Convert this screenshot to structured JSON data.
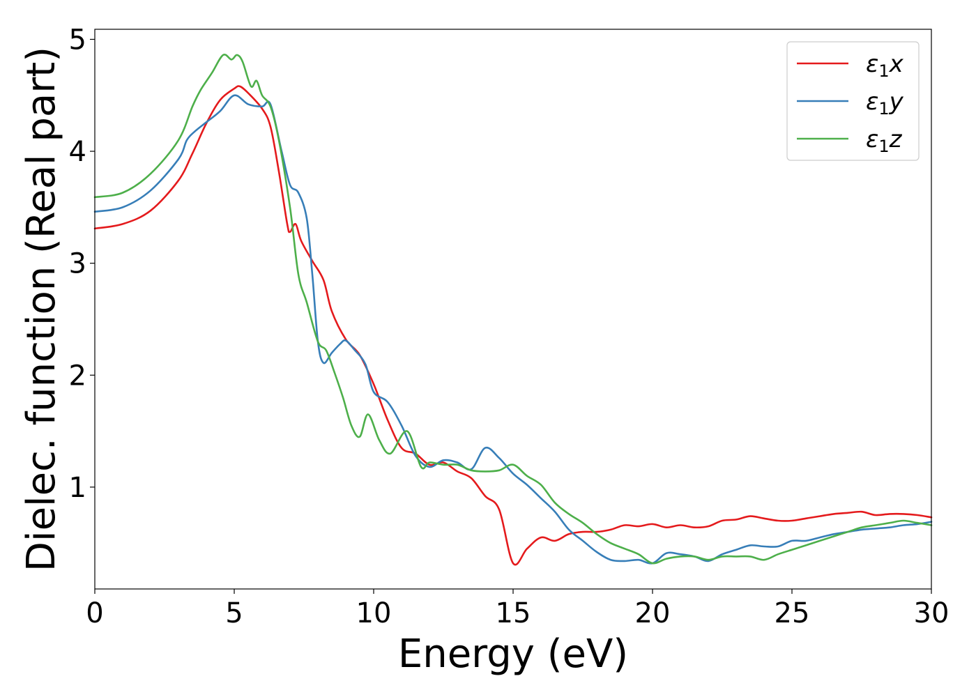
{
  "chart_data": {
    "type": "line",
    "xlabel": "Energy (eV)",
    "ylabel": "Dielec. function (Real part)",
    "xlim": [
      0,
      30
    ],
    "ylim": [
      0.09,
      5.09
    ],
    "xticks": [
      0,
      5,
      10,
      15,
      20,
      25,
      30
    ],
    "yticks": [
      1,
      2,
      3,
      4,
      5
    ],
    "grid": false,
    "legend_position": "top-right",
    "series": [
      {
        "name": "ε1x",
        "legend": {
          "main": "ε",
          "sub": "1",
          "suffix": "x"
        },
        "color": "#e41a1c",
        "x": [
          0,
          1,
          2,
          3,
          3.5,
          4,
          4.5,
          5,
          5.2,
          5.5,
          6,
          6.3,
          6.6,
          6.9,
          7.0,
          7.2,
          7.4,
          7.8,
          8.2,
          8.5,
          9,
          9.5,
          10,
          10.5,
          11,
          11.5,
          12,
          12.5,
          13,
          13.5,
          14,
          14.5,
          15,
          15.5,
          16,
          16.5,
          17,
          17.5,
          18,
          18.5,
          19,
          19.5,
          20,
          20.5,
          21,
          21.5,
          22,
          22.5,
          23,
          23.5,
          24,
          24.5,
          25,
          25.5,
          26,
          26.5,
          27,
          27.5,
          28,
          28.5,
          29,
          29.5,
          30
        ],
        "y": [
          3.31,
          3.35,
          3.47,
          3.74,
          3.98,
          4.25,
          4.46,
          4.56,
          4.58,
          4.52,
          4.38,
          4.22,
          3.82,
          3.35,
          3.28,
          3.35,
          3.2,
          3.02,
          2.85,
          2.57,
          2.32,
          2.18,
          1.92,
          1.6,
          1.35,
          1.3,
          1.2,
          1.22,
          1.14,
          1.08,
          0.92,
          0.8,
          0.32,
          0.45,
          0.55,
          0.52,
          0.58,
          0.6,
          0.6,
          0.62,
          0.66,
          0.65,
          0.67,
          0.64,
          0.66,
          0.64,
          0.65,
          0.7,
          0.71,
          0.74,
          0.72,
          0.7,
          0.7,
          0.72,
          0.74,
          0.76,
          0.77,
          0.78,
          0.75,
          0.76,
          0.76,
          0.75,
          0.73
        ]
      },
      {
        "name": "ε1y",
        "legend": {
          "main": "ε",
          "sub": "1",
          "suffix": "y"
        },
        "color": "#377eb8",
        "x": [
          0,
          1,
          2,
          3,
          3.3,
          3.6,
          4,
          4.5,
          5,
          5.5,
          6,
          6.3,
          6.7,
          7,
          7.3,
          7.6,
          7.8,
          8.0,
          8.2,
          8.5,
          8.8,
          9,
          9.3,
          9.7,
          10,
          10.5,
          11,
          11.5,
          12,
          12.5,
          13,
          13.5,
          14,
          14.5,
          15,
          15.5,
          16,
          16.5,
          17,
          17.5,
          18,
          18.5,
          19,
          19.5,
          20,
          20.5,
          21,
          21.5,
          22,
          22.5,
          23,
          23.5,
          24,
          24.5,
          25,
          25.5,
          26,
          26.5,
          27,
          27.5,
          28,
          28.5,
          29,
          29.5,
          30
        ],
        "y": [
          3.46,
          3.5,
          3.65,
          3.93,
          4.1,
          4.18,
          4.26,
          4.36,
          4.5,
          4.42,
          4.4,
          4.42,
          4.0,
          3.7,
          3.63,
          3.4,
          2.9,
          2.3,
          2.11,
          2.2,
          2.28,
          2.31,
          2.23,
          2.1,
          1.85,
          1.76,
          1.55,
          1.28,
          1.18,
          1.24,
          1.22,
          1.16,
          1.35,
          1.26,
          1.12,
          1.02,
          0.9,
          0.78,
          0.62,
          0.52,
          0.42,
          0.35,
          0.34,
          0.35,
          0.32,
          0.41,
          0.4,
          0.38,
          0.34,
          0.4,
          0.44,
          0.48,
          0.47,
          0.47,
          0.52,
          0.52,
          0.55,
          0.58,
          0.6,
          0.62,
          0.63,
          0.64,
          0.66,
          0.67,
          0.69
        ]
      },
      {
        "name": "ε1z",
        "legend": {
          "main": "ε",
          "sub": "1",
          "suffix": "z"
        },
        "color": "#4daf4a",
        "x": [
          0,
          1,
          2,
          3,
          3.5,
          3.8,
          4.2,
          4.6,
          4.9,
          5.1,
          5.3,
          5.6,
          5.8,
          6.0,
          6.3,
          6.6,
          7.0,
          7.3,
          7.6,
          8.0,
          8.3,
          8.6,
          8.9,
          9.2,
          9.5,
          9.8,
          10.2,
          10.6,
          11.2,
          11.7,
          12,
          12.5,
          13,
          13.5,
          14,
          14.5,
          15,
          15.5,
          16,
          16.5,
          17,
          17.5,
          18,
          18.5,
          19,
          19.5,
          20,
          20.5,
          21,
          21.5,
          22,
          22.5,
          23,
          23.5,
          24,
          24.5,
          25,
          25.5,
          26,
          26.5,
          27,
          27.5,
          28,
          28.5,
          29,
          29.5,
          30
        ],
        "y": [
          3.59,
          3.63,
          3.8,
          4.1,
          4.4,
          4.55,
          4.7,
          4.86,
          4.82,
          4.86,
          4.8,
          4.58,
          4.63,
          4.5,
          4.4,
          4.1,
          3.5,
          2.9,
          2.65,
          2.3,
          2.22,
          2.02,
          1.8,
          1.55,
          1.45,
          1.65,
          1.42,
          1.3,
          1.5,
          1.18,
          1.22,
          1.2,
          1.2,
          1.15,
          1.14,
          1.15,
          1.2,
          1.1,
          1.02,
          0.86,
          0.76,
          0.68,
          0.58,
          0.5,
          0.45,
          0.4,
          0.32,
          0.36,
          0.38,
          0.38,
          0.35,
          0.38,
          0.38,
          0.38,
          0.35,
          0.4,
          0.44,
          0.48,
          0.52,
          0.56,
          0.6,
          0.64,
          0.66,
          0.68,
          0.7,
          0.68,
          0.66
        ]
      }
    ]
  }
}
